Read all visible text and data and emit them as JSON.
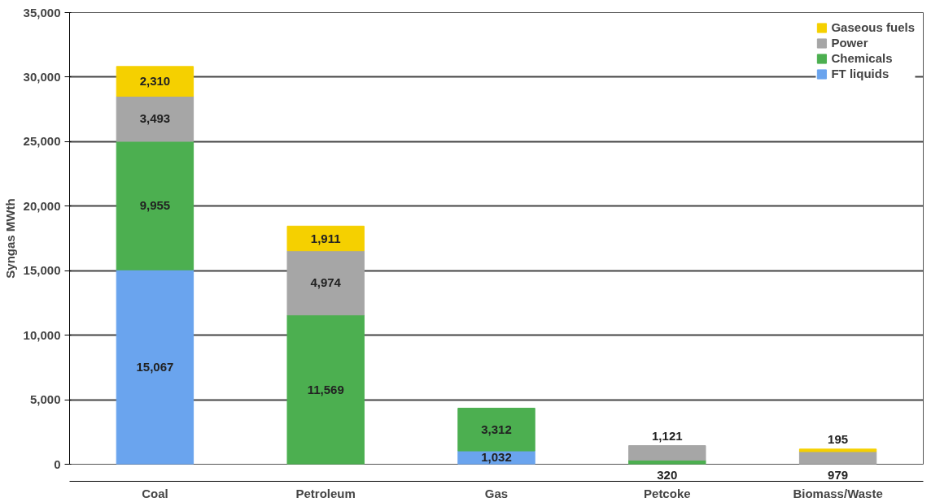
{
  "chart_data": {
    "type": "bar",
    "stacked": true,
    "ylabel": "Syngas MWth",
    "categories": [
      "Coal",
      "Petroleum",
      "Gas",
      "Petcoke",
      "Biomass/Waste"
    ],
    "series": [
      {
        "name": "FT liquids",
        "color": "#6aa4ee",
        "values": [
          15067,
          null,
          1032,
          null,
          null
        ],
        "value_labels": [
          "15,067",
          null,
          "1,032",
          null,
          null
        ]
      },
      {
        "name": "Chemicals",
        "color": "#4caf50",
        "values": [
          9955,
          11569,
          3312,
          320,
          null
        ],
        "value_labels": [
          "9,955",
          "11,569",
          "3,312",
          "320",
          null
        ]
      },
      {
        "name": "Power",
        "color": "#a6a6a6",
        "values": [
          3493,
          4974,
          null,
          1121,
          979
        ],
        "value_labels": [
          "3,493",
          "4,974",
          null,
          "1,121",
          "979"
        ]
      },
      {
        "name": "Gaseous fuels",
        "color": "#f5d000",
        "values": [
          2310,
          1911,
          null,
          null,
          195
        ],
        "value_labels": [
          "2,310",
          "1,911",
          null,
          null,
          "195"
        ]
      }
    ],
    "ylim": [
      0,
      35000
    ],
    "yticks": [
      {
        "value": 0,
        "label": "0"
      },
      {
        "value": 5000,
        "label": "5,000"
      },
      {
        "value": 10000,
        "label": "10,000"
      },
      {
        "value": 15000,
        "label": "15,000"
      },
      {
        "value": 20000,
        "label": "20,000"
      },
      {
        "value": 25000,
        "label": "25,000"
      },
      {
        "value": 30000,
        "label": "30,000"
      },
      {
        "value": 35000,
        "label": "35,000"
      }
    ],
    "grid": "y",
    "legend": "top right"
  }
}
